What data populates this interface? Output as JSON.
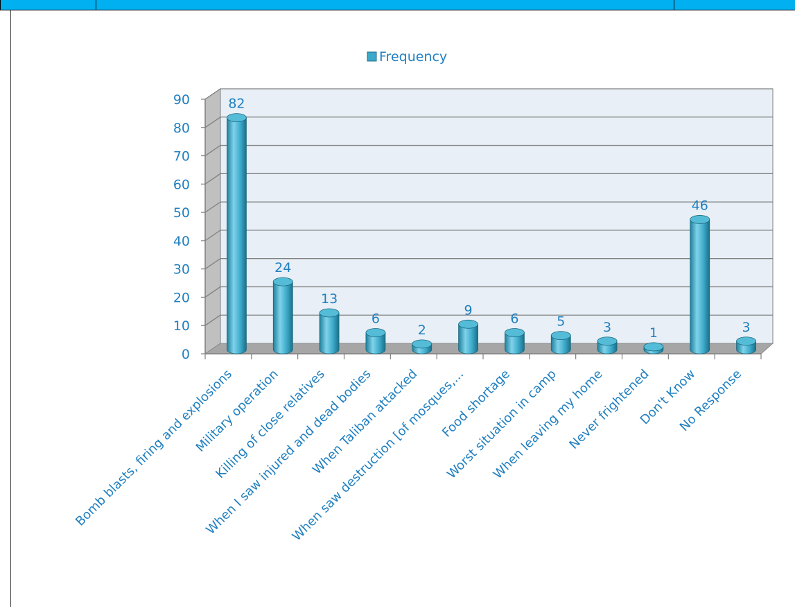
{
  "chart_data": {
    "type": "bar",
    "title": "",
    "xlabel": "",
    "ylabel": "",
    "ylim": [
      0,
      90
    ],
    "yticks": [
      0,
      10,
      20,
      30,
      40,
      50,
      60,
      70,
      80,
      90
    ],
    "grid": true,
    "legend_position": "top",
    "categories": [
      "Bomb blasts, firing and explosions",
      "Military operation",
      "Killing of close relatives",
      "When I saw injured and dead bodies",
      "When Taliban attacked",
      "When saw destruction [of mosques,...",
      "Food shortage",
      "Worst situation in camp",
      "When leaving my home",
      "Never frightened",
      "Don't Know",
      "No Response"
    ],
    "series": [
      {
        "name": "Frequency",
        "values": [
          82,
          24,
          13,
          6,
          2,
          9,
          6,
          5,
          3,
          1,
          46,
          3
        ]
      }
    ],
    "colors": {
      "bar": "#3ca9c9",
      "bar_dark": "#1f7f9c",
      "bar_light": "#7fd3ea",
      "bar_top": "#55bcd8",
      "text": "#1f7fc0",
      "plot_bg": "#e8eff6",
      "floor": "#a6a6a6",
      "sidewall": "#c0c0c0",
      "gridline": "#808080"
    }
  }
}
